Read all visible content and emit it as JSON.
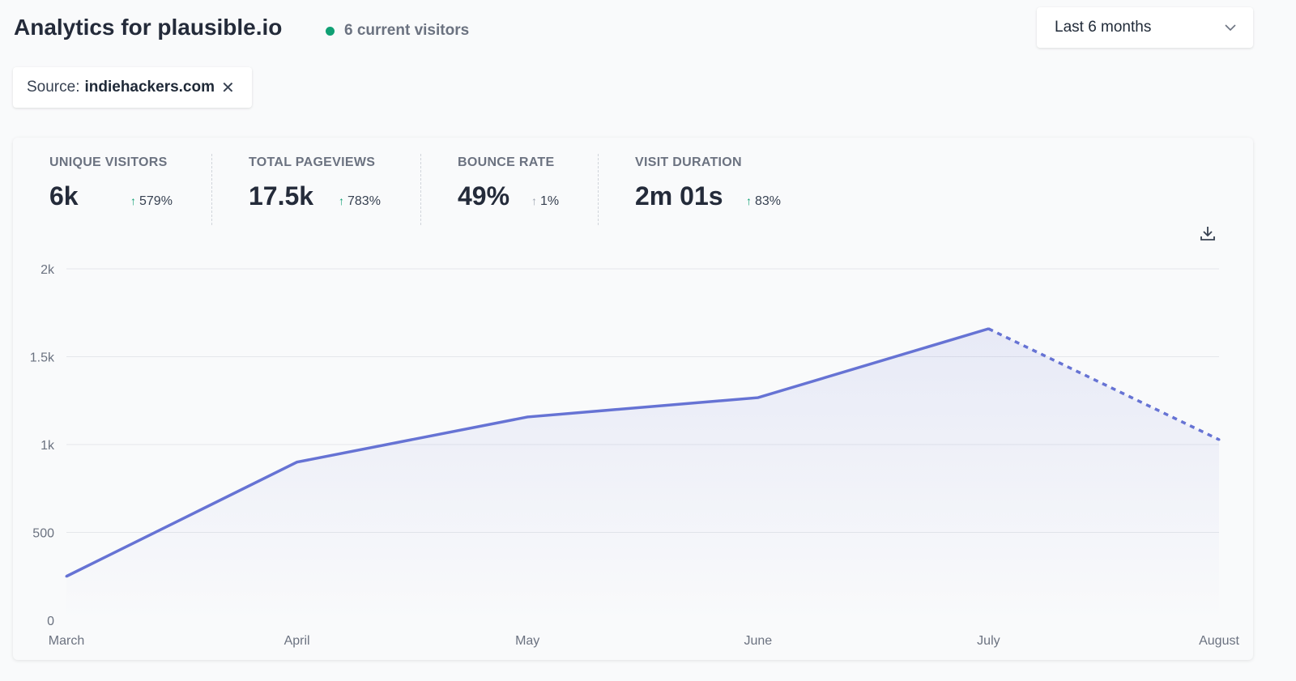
{
  "header": {
    "title": "Analytics for plausible.io",
    "current_visitors": "6 current visitors",
    "live_color": "#10a074"
  },
  "period_select": {
    "value": "Last 6 months",
    "icon": "chevron-down-icon"
  },
  "filter": {
    "label": "Source:",
    "value": "indiehackers.com",
    "remove_icon": "close-icon"
  },
  "stats": [
    {
      "label": "UNIQUE VISITORS",
      "value": "6k",
      "change": "579%",
      "direction": "up"
    },
    {
      "label": "TOTAL PAGEVIEWS",
      "value": "17.5k",
      "change": "783%",
      "direction": "up"
    },
    {
      "label": "BOUNCE RATE",
      "value": "49%",
      "change": "1%",
      "direction": "up"
    },
    {
      "label": "VISIT DURATION",
      "value": "2m 01s",
      "change": "83%",
      "direction": "up"
    }
  ],
  "download_icon": "download-icon",
  "chart_data": {
    "type": "line",
    "categories": [
      "March",
      "April",
      "May",
      "June",
      "July",
      "August"
    ],
    "values": [
      250,
      900,
      1157,
      1267,
      1659,
      1028
    ],
    "dashed_last_segment": true,
    "ylim": [
      0,
      2000
    ],
    "yticks": [
      0,
      500,
      1000,
      1500,
      2000
    ],
    "ytick_labels": [
      "0",
      "500",
      "1k",
      "1.5k",
      "2k"
    ],
    "grid": true,
    "line_color": "#6673d4"
  }
}
